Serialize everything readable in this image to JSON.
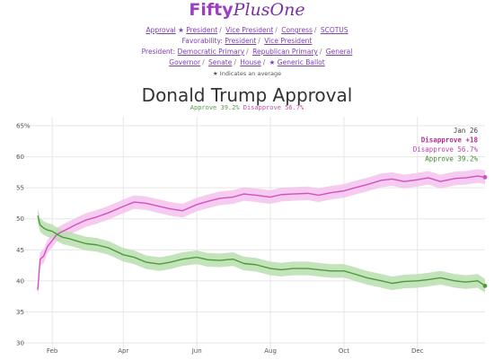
{
  "logo": {
    "part1": "Fifty",
    "part2": "PlusOne"
  },
  "nav": {
    "row1": [
      {
        "label": "Approval",
        "type": "label"
      },
      {
        "label": "President",
        "star": true
      },
      {
        "label": "Vice President"
      },
      {
        "label": "Congress"
      },
      {
        "label": "SCOTUS"
      }
    ],
    "row2_label": "Favorability:",
    "row2": [
      {
        "label": "President"
      },
      {
        "label": "Vice President"
      }
    ],
    "row3_label": "President:",
    "row3": [
      {
        "label": "Democratic Primary"
      },
      {
        "label": "Republican Primary"
      },
      {
        "label": "General"
      }
    ],
    "row4": [
      {
        "label": "Governor"
      },
      {
        "label": "Senate"
      },
      {
        "label": "House"
      },
      {
        "label": "Generic Ballot",
        "star": true
      }
    ],
    "note": "★ Indicates an average"
  },
  "header": {
    "title": "Donald Trump Approval",
    "sub_approve": "Approve 39.2%",
    "sub_disapprove": "Disapprove 56.7%"
  },
  "chart_data": {
    "type": "line",
    "title": "Donald Trump Approval",
    "ylim": [
      30,
      65
    ],
    "y_ticks": [
      "65%",
      "60",
      "55",
      "50",
      "45",
      "40",
      "35",
      "30"
    ],
    "x_ticks": [
      "Feb",
      "Apr",
      "Jun",
      "Aug",
      "Oct",
      "Dec"
    ],
    "legend": {
      "date": "Jan 26",
      "net": "Disapprove +18",
      "disapprove": "Disapprove 56.7%",
      "approve": "Approve 39.2%"
    },
    "colors": {
      "approve": "#4e9a3c",
      "disapprove": "#d44fc2",
      "approve_band": "#b9deaf",
      "disapprove_band": "#f3c2ec"
    },
    "x": [
      "Jan 20",
      "Jan 22",
      "Jan 25",
      "Jan 28",
      "Feb 1",
      "Feb 5",
      "Feb 10",
      "Feb 15",
      "Feb 20",
      "Mar 1",
      "Mar 10",
      "Mar 20",
      "Apr 1",
      "Apr 10",
      "Apr 20",
      "May 1",
      "May 10",
      "May 20",
      "Jun 1",
      "Jun 10",
      "Jun 20",
      "Jul 1",
      "Jul 10",
      "Jul 20",
      "Aug 1",
      "Aug 10",
      "Aug 20",
      "Sep 1",
      "Sep 10",
      "Sep 20",
      "Oct 1",
      "Oct 10",
      "Oct 20",
      "Nov 1",
      "Nov 10",
      "Nov 20",
      "Dec 1",
      "Dec 10",
      "Dec 20",
      "Jan 1",
      "Jan 10",
      "Jan 20",
      "Jan 26"
    ],
    "series": [
      {
        "name": "Disapprove",
        "values": [
          38.5,
          43.5,
          44.0,
          45.5,
          46.5,
          47.5,
          48.0,
          48.5,
          49.0,
          49.8,
          50.3,
          51.0,
          52.0,
          52.7,
          52.5,
          52.0,
          51.6,
          51.3,
          52.3,
          52.8,
          53.3,
          53.5,
          54.0,
          53.8,
          53.5,
          53.9,
          54.0,
          54.1,
          53.8,
          54.2,
          54.5,
          55.0,
          55.5,
          56.2,
          56.4,
          56.0,
          56.3,
          56.6,
          56.0,
          56.5,
          56.6,
          56.9,
          56.7
        ]
      },
      {
        "name": "Approve",
        "values": [
          50.5,
          49.0,
          48.5,
          48.2,
          48.0,
          47.5,
          47.0,
          46.8,
          46.5,
          46.0,
          45.8,
          45.3,
          44.2,
          43.8,
          43.0,
          42.7,
          43.0,
          43.5,
          43.8,
          43.4,
          43.3,
          43.5,
          42.8,
          42.6,
          42.0,
          41.8,
          42.0,
          42.0,
          41.8,
          41.6,
          41.6,
          41.1,
          40.5,
          40.0,
          39.6,
          39.9,
          40.0,
          40.2,
          40.5,
          40.0,
          39.8,
          40.0,
          39.2
        ]
      }
    ]
  }
}
